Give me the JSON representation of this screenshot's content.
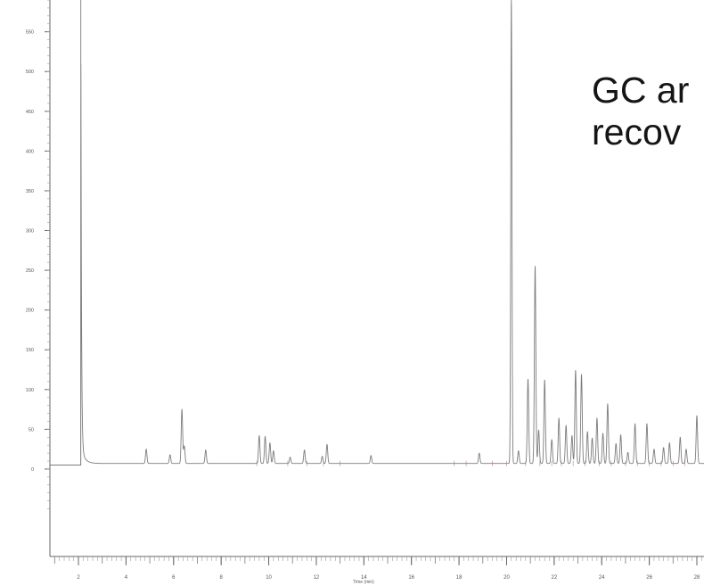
{
  "overlay": {
    "line1": "GC ar",
    "line2": "recov"
  },
  "chart_data": {
    "type": "line",
    "title": "",
    "xlabel": "Time (min)",
    "ylabel": "",
    "xlim": [
      0.8,
      28.3
    ],
    "ylim": [
      -110,
      590
    ],
    "xticks": [
      2,
      4,
      6,
      8,
      10,
      12,
      14,
      16,
      18,
      20,
      22,
      24,
      26,
      28
    ],
    "yticks": [
      0,
      50,
      100,
      150,
      200,
      250,
      300,
      350,
      400,
      450,
      500,
      550
    ],
    "grid": false,
    "colors": {
      "trace": "#7d7d7d",
      "axis": "#666666",
      "baseline_marks": "#c9a0a0"
    },
    "series": [
      {
        "baseline": 7,
        "initial_offset": 5,
        "solvent_peak": {
          "rt": 2.1,
          "height": 590,
          "tail_decay": 0.15
        },
        "peaks": [
          {
            "rt": 4.85,
            "height": 18
          },
          {
            "rt": 5.85,
            "height": 11
          },
          {
            "rt": 6.35,
            "height": 68
          },
          {
            "rt": 6.45,
            "height": 22
          },
          {
            "rt": 7.35,
            "height": 17
          },
          {
            "rt": 9.6,
            "height": 35
          },
          {
            "rt": 9.85,
            "height": 34
          },
          {
            "rt": 10.05,
            "height": 26
          },
          {
            "rt": 10.2,
            "height": 16
          },
          {
            "rt": 10.9,
            "height": 8
          },
          {
            "rt": 11.5,
            "height": 17
          },
          {
            "rt": 12.25,
            "height": 9
          },
          {
            "rt": 12.45,
            "height": 24
          },
          {
            "rt": 14.3,
            "height": 10
          },
          {
            "rt": 18.85,
            "height": 13
          },
          {
            "rt": 20.2,
            "height": 585
          },
          {
            "rt": 20.5,
            "height": 16
          },
          {
            "rt": 20.9,
            "height": 106
          },
          {
            "rt": 21.2,
            "height": 248
          },
          {
            "rt": 21.35,
            "height": 42
          },
          {
            "rt": 21.6,
            "height": 105
          },
          {
            "rt": 21.9,
            "height": 30
          },
          {
            "rt": 22.2,
            "height": 57
          },
          {
            "rt": 22.5,
            "height": 48
          },
          {
            "rt": 22.75,
            "height": 35
          },
          {
            "rt": 22.9,
            "height": 117
          },
          {
            "rt": 23.15,
            "height": 112
          },
          {
            "rt": 23.4,
            "height": 40
          },
          {
            "rt": 23.6,
            "height": 32
          },
          {
            "rt": 23.8,
            "height": 57
          },
          {
            "rt": 24.05,
            "height": 38
          },
          {
            "rt": 24.25,
            "height": 75
          },
          {
            "rt": 24.6,
            "height": 25
          },
          {
            "rt": 24.8,
            "height": 36
          },
          {
            "rt": 25.1,
            "height": 14
          },
          {
            "rt": 25.4,
            "height": 50
          },
          {
            "rt": 25.9,
            "height": 50
          },
          {
            "rt": 26.2,
            "height": 18
          },
          {
            "rt": 26.6,
            "height": 20
          },
          {
            "rt": 26.85,
            "height": 26
          },
          {
            "rt": 27.3,
            "height": 33
          },
          {
            "rt": 27.55,
            "height": 18
          },
          {
            "rt": 28.0,
            "height": 60
          }
        ],
        "integration_marks": [
          9.5,
          10.8,
          11.6,
          12.3,
          13.0,
          17.8,
          18.3,
          19.4,
          20.0,
          20.8,
          21.4,
          21.9,
          22.3,
          22.8,
          23.3,
          23.9,
          24.4,
          25.0,
          25.5,
          26.0,
          26.5,
          27.0,
          27.5
        ]
      }
    ]
  }
}
